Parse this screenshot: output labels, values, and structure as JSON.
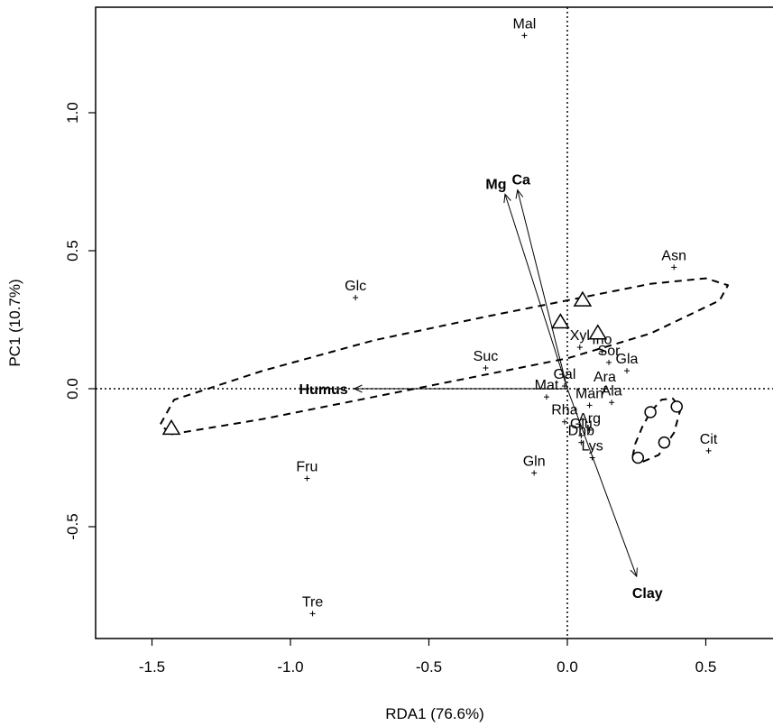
{
  "chart_data": {
    "type": "scatter",
    "title": "",
    "xlabel": "RDA1 (76.6%)",
    "ylabel": "PC1 (10.7%)",
    "xlim": [
      -1.7,
      0.75
    ],
    "ylim": [
      -0.9,
      1.4
    ],
    "x_ticks": [
      -1.5,
      -1.0,
      -0.5,
      0.0,
      0.5
    ],
    "x_tick_labels": [
      "-1.5",
      "-1.0",
      "-0.5",
      "0.0",
      "0.5"
    ],
    "y_ticks": [
      -0.5,
      0.0,
      0.5,
      1.0
    ],
    "y_tick_labels": [
      "-0.5",
      "0.0",
      "0.5",
      "1.0"
    ],
    "reference_lines": {
      "x": 0.0,
      "y": 0.0,
      "style": "dotted"
    },
    "grid": false,
    "legend": "none",
    "points": [
      {
        "label": "Mal",
        "x": -0.155,
        "y": 1.28
      },
      {
        "label": "Asn",
        "x": 0.385,
        "y": 0.44
      },
      {
        "label": "Glc",
        "x": -0.765,
        "y": 0.33
      },
      {
        "label": "Xyl",
        "x": 0.045,
        "y": 0.15
      },
      {
        "label": "Ino",
        "x": 0.125,
        "y": 0.135
      },
      {
        "label": "Suc",
        "x": -0.295,
        "y": 0.075
      },
      {
        "label": "Sor",
        "x": 0.15,
        "y": 0.095
      },
      {
        "label": "Gla",
        "x": 0.215,
        "y": 0.065
      },
      {
        "label": "Gal",
        "x": -0.01,
        "y": 0.01
      },
      {
        "label": "Ara",
        "x": 0.135,
        "y": 0.0
      },
      {
        "label": "Mat",
        "x": -0.075,
        "y": -0.03
      },
      {
        "label": "Man",
        "x": 0.08,
        "y": -0.06
      },
      {
        "label": "Rha",
        "x": -0.01,
        "y": -0.12
      },
      {
        "label": "Glu",
        "x": 0.05,
        "y": -0.17
      },
      {
        "label": "Ala",
        "x": 0.16,
        "y": -0.05
      },
      {
        "label": "Arg",
        "x": 0.08,
        "y": -0.15
      },
      {
        "label": "Dhb",
        "x": 0.05,
        "y": -0.195
      },
      {
        "label": "Lys",
        "x": 0.09,
        "y": -0.25
      },
      {
        "label": "Cit",
        "x": 0.51,
        "y": -0.225
      },
      {
        "label": "Gln",
        "x": -0.12,
        "y": -0.305
      },
      {
        "label": "Fru",
        "x": -0.94,
        "y": -0.325
      },
      {
        "label": "Tre",
        "x": -0.92,
        "y": -0.815
      }
    ],
    "vectors": [
      {
        "label": "Mg",
        "x": -0.225,
        "y": 0.705
      },
      {
        "label": "Ca",
        "x": -0.18,
        "y": 0.72
      },
      {
        "label": "Humus",
        "x": -0.77,
        "y": 0.0
      },
      {
        "label": "Clay",
        "x": 0.25,
        "y": -0.68
      }
    ],
    "groups": [
      {
        "marker": "triangle",
        "points": [
          [
            -1.43,
            -0.145
          ],
          [
            -0.025,
            0.24
          ],
          [
            0.055,
            0.32
          ],
          [
            0.11,
            0.2
          ]
        ],
        "ellipse": [
          [
            -1.43,
            -0.165
          ],
          [
            -1.1,
            -0.11
          ],
          [
            -0.7,
            -0.03
          ],
          [
            -0.3,
            0.05
          ],
          [
            0.0,
            0.11
          ],
          [
            0.3,
            0.2
          ],
          [
            0.55,
            0.32
          ],
          [
            0.58,
            0.375
          ],
          [
            0.5,
            0.4
          ],
          [
            0.3,
            0.38
          ],
          [
            0.0,
            0.32
          ],
          [
            -0.3,
            0.26
          ],
          [
            -0.7,
            0.175
          ],
          [
            -1.1,
            0.065
          ],
          [
            -1.42,
            -0.04
          ],
          [
            -1.47,
            -0.13
          ],
          [
            -1.43,
            -0.165
          ]
        ]
      },
      {
        "marker": "circle",
        "points": [
          [
            0.255,
            -0.25
          ],
          [
            0.3,
            -0.085
          ],
          [
            0.35,
            -0.195
          ],
          [
            0.395,
            -0.065
          ]
        ],
        "ellipse": [
          [
            0.235,
            -0.25
          ],
          [
            0.26,
            -0.27
          ],
          [
            0.33,
            -0.24
          ],
          [
            0.385,
            -0.16
          ],
          [
            0.41,
            -0.07
          ],
          [
            0.38,
            -0.035
          ],
          [
            0.34,
            -0.04
          ],
          [
            0.3,
            -0.085
          ],
          [
            0.27,
            -0.14
          ],
          [
            0.245,
            -0.2
          ],
          [
            0.235,
            -0.25
          ]
        ]
      }
    ]
  }
}
